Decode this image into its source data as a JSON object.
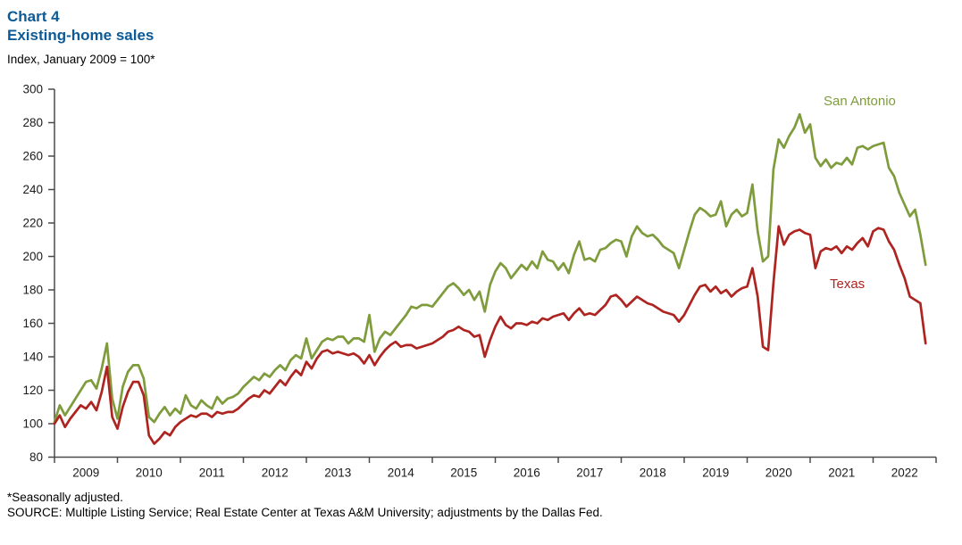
{
  "header": {
    "chart_label": "Chart 4",
    "title": "Existing-home sales",
    "unit_label": "Index, January 2009 = 100*"
  },
  "footer": {
    "footnote": "*Seasonally adjusted.",
    "source": "SOURCE: Multiple Listing Service; Real Estate Center at Texas A&M University; adjustments by the Dallas Fed."
  },
  "colors": {
    "title_blue": "#0c5a96",
    "axis": "#4a4a4a",
    "tick_label": "#1a1a1a",
    "san_antonio_green": "#7f9c3d",
    "texas_red": "#ad2420"
  },
  "chart_data": {
    "type": "line",
    "title": "Existing-home sales",
    "ylabel": "Index, January 2009 = 100*",
    "ylim": [
      80,
      300
    ],
    "y_ticks": [
      80,
      100,
      120,
      140,
      160,
      180,
      200,
      220,
      240,
      260,
      280,
      300
    ],
    "x_tick_years": [
      2009,
      2010,
      2011,
      2012,
      2013,
      2014,
      2015,
      2016,
      2017,
      2018,
      2019,
      2020,
      2021,
      2022
    ],
    "x_start_month": "2009-01",
    "x_end_month": "2022-11",
    "grid": false,
    "legend_position": "inline-labels",
    "series": [
      {
        "name": "San Antonio",
        "color": "#7f9c3d",
        "values": [
          101,
          111,
          105,
          110,
          115,
          120,
          125,
          126,
          121,
          133,
          148,
          115,
          103,
          122,
          131,
          135,
          135,
          127,
          104,
          101,
          106,
          110,
          105,
          109,
          106,
          117,
          111,
          109,
          114,
          111,
          109,
          116,
          112,
          115,
          116,
          118,
          122,
          125,
          128,
          126,
          130,
          128,
          132,
          135,
          132,
          138,
          141,
          139,
          151,
          139,
          144,
          149,
          151,
          150,
          152,
          152,
          148,
          151,
          151,
          149,
          165,
          143,
          151,
          155,
          153,
          157,
          161,
          165,
          170,
          169,
          171,
          171,
          170,
          174,
          178,
          182,
          184,
          181,
          177,
          180,
          174,
          179,
          167,
          183,
          191,
          196,
          193,
          187,
          191,
          195,
          192,
          197,
          193,
          203,
          198,
          197,
          192,
          196,
          190,
          201,
          209,
          198,
          199,
          197,
          204,
          205,
          208,
          210,
          209,
          200,
          212,
          218,
          214,
          212,
          213,
          210,
          206,
          204,
          202,
          193,
          204,
          215,
          225,
          229,
          227,
          224,
          225,
          233,
          218,
          225,
          228,
          224,
          226,
          243,
          215,
          197,
          200,
          252,
          270,
          265,
          272,
          277,
          285,
          274,
          279,
          259,
          254,
          258,
          253,
          256,
          255,
          259,
          255,
          265,
          266,
          264,
          266,
          267,
          268,
          253,
          248,
          238,
          231,
          224,
          228,
          213,
          195
        ]
      },
      {
        "name": "Texas",
        "color": "#ad2420",
        "values": [
          100,
          105,
          98,
          103,
          107,
          111,
          109,
          113,
          108,
          119,
          134,
          104,
          97,
          110,
          119,
          125,
          125,
          117,
          93,
          88,
          91,
          95,
          93,
          98,
          101,
          103,
          105,
          104,
          106,
          106,
          104,
          107,
          106,
          107,
          107,
          109,
          112,
          115,
          117,
          116,
          120,
          118,
          122,
          126,
          123,
          128,
          132,
          129,
          137,
          133,
          139,
          143,
          144,
          142,
          143,
          142,
          141,
          142,
          140,
          136,
          141,
          135,
          140,
          144,
          147,
          149,
          146,
          147,
          147,
          145,
          146,
          147,
          148,
          150,
          152,
          155,
          156,
          158,
          156,
          155,
          152,
          153,
          140,
          150,
          158,
          164,
          159,
          157,
          160,
          160,
          159,
          161,
          160,
          163,
          162,
          164,
          165,
          166,
          162,
          166,
          169,
          165,
          166,
          165,
          168,
          171,
          176,
          177,
          174,
          170,
          173,
          176,
          174,
          172,
          171,
          169,
          167,
          166,
          165,
          161,
          165,
          171,
          177,
          182,
          183,
          179,
          182,
          178,
          180,
          176,
          179,
          181,
          182,
          193,
          176,
          146,
          144,
          184,
          218,
          207,
          213,
          215,
          216,
          214,
          213,
          193,
          203,
          205,
          204,
          206,
          202,
          206,
          204,
          208,
          211,
          206,
          215,
          217,
          216,
          209,
          204,
          195,
          187,
          176,
          174,
          172,
          148
        ]
      }
    ]
  }
}
